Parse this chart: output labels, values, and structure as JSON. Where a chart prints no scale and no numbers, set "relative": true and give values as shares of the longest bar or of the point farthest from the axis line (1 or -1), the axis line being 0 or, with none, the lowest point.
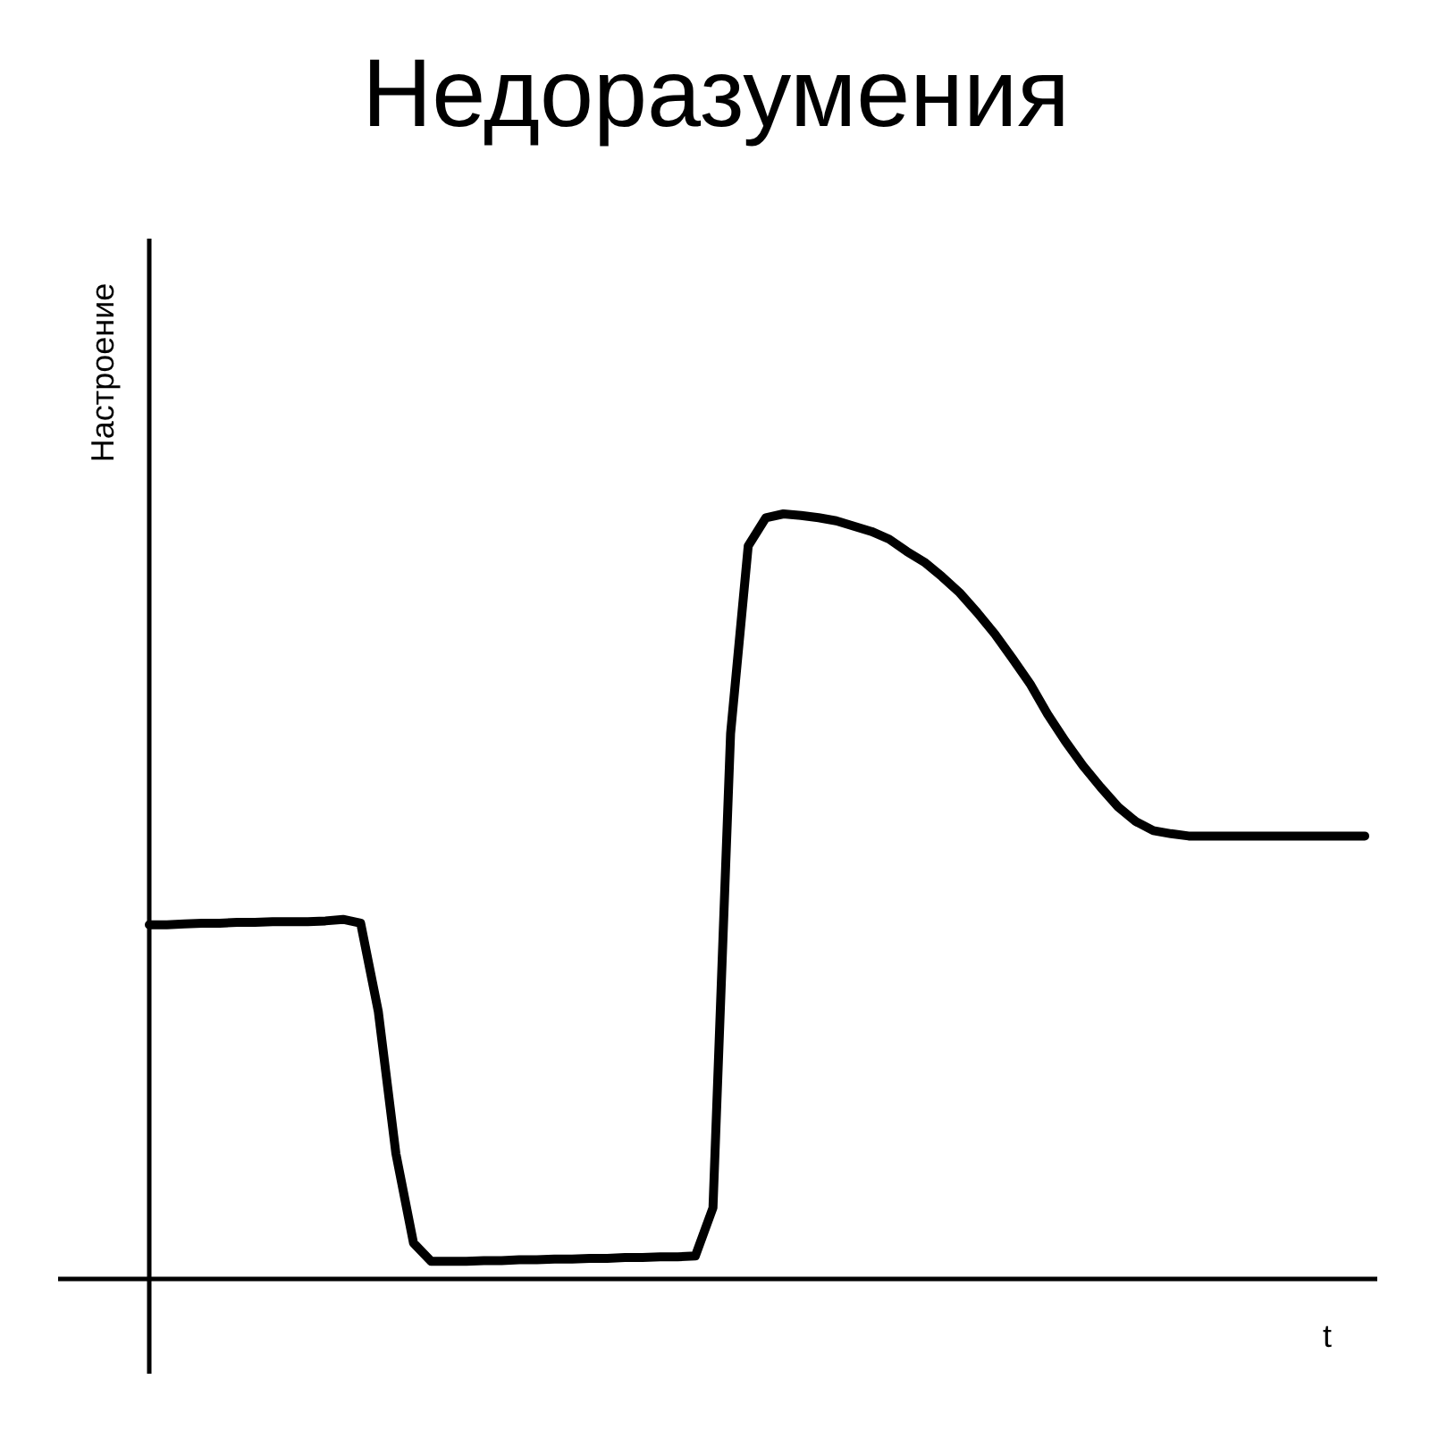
{
  "chart_data": {
    "type": "line",
    "title": "Недоразумения",
    "xlabel": "t",
    "ylabel": "Настроение",
    "relative": true,
    "categories": [
      null,
      null,
      null,
      null,
      null,
      null,
      null,
      null,
      null,
      null,
      null,
      null,
      null,
      null,
      null,
      null,
      null,
      null,
      null,
      null,
      null,
      null,
      null,
      null,
      null,
      null,
      null,
      null,
      null,
      null,
      null,
      null,
      null,
      null,
      null,
      null,
      null,
      null,
      null,
      null,
      null,
      null,
      null,
      null,
      null,
      null,
      null,
      null,
      null,
      null,
      null,
      null,
      null,
      null,
      null,
      null,
      null,
      null,
      null,
      null,
      null,
      null,
      null,
      null,
      null,
      null,
      null,
      null,
      null,
      null
    ],
    "series": [
      {
        "color": "#000000",
        "values": [
          0.463,
          0.463,
          0.464,
          0.465,
          0.465,
          0.466,
          0.466,
          0.467,
          0.467,
          0.467,
          0.468,
          0.47,
          0.465,
          0.35,
          0.164,
          0.047,
          0.023,
          0.023,
          0.023,
          0.024,
          0.024,
          0.025,
          0.025,
          0.026,
          0.026,
          0.027,
          0.027,
          0.028,
          0.028,
          0.029,
          0.029,
          0.03,
          0.093,
          0.713,
          0.958,
          0.995,
          1,
          0.998,
          0.995,
          0.991,
          0.984,
          0.977,
          0.967,
          0.951,
          0.937,
          0.918,
          0.897,
          0.871,
          0.843,
          0.811,
          0.778,
          0.738,
          0.703,
          0.671,
          0.643,
          0.617,
          0.598,
          0.586,
          0.582,
          0.579,
          0.579,
          0.579,
          0.579,
          0.579,
          0.579,
          0.579,
          0.579,
          0.579,
          0.579,
          0.579
        ]
      }
    ]
  }
}
